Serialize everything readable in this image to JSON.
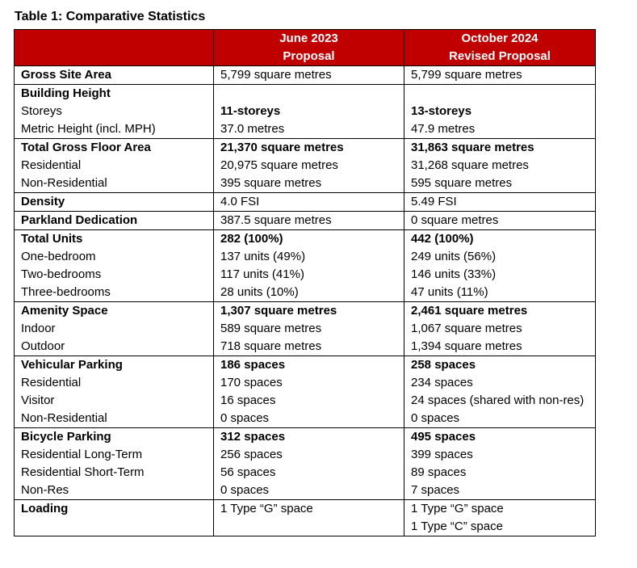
{
  "caption": "Table 1: Comparative Statistics",
  "headers": {
    "col1": [
      "June 2023",
      "Proposal"
    ],
    "col2": [
      "October 2024",
      "Revised Proposal"
    ]
  },
  "rows": [
    {
      "label": "Gross Site Area",
      "v1": "5,799 square metres",
      "v2": "5,799 square metres"
    },
    {
      "label": "Building Height",
      "v1": "",
      "v2": ""
    },
    {
      "label": "Storeys",
      "v1": "11-storeys",
      "v2": "13-storeys"
    },
    {
      "label": "Metric Height (incl. MPH)",
      "v1": "37.0 metres",
      "v2": "47.9 metres"
    },
    {
      "label": "Total Gross Floor Area",
      "v1": "21,370 square metres",
      "v2": "31,863 square metres"
    },
    {
      "label": "Residential",
      "v1": "20,975 square metres",
      "v2": "31,268 square metres"
    },
    {
      "label": "Non-Residential",
      "v1": "395 square metres",
      "v2": "595 square metres"
    },
    {
      "label": "Density",
      "v1": "4.0 FSI",
      "v2": "5.49 FSI"
    },
    {
      "label": "Parkland Dedication",
      "v1": "387.5 square metres",
      "v2": "0 square metres"
    },
    {
      "label": "Total Units",
      "v1": "282 (100%)",
      "v2": "442 (100%)"
    },
    {
      "label": "One-bedroom",
      "v1": "137 units (49%)",
      "v2": "249 units (56%)"
    },
    {
      "label": "Two-bedrooms",
      "v1": "117 units (41%)",
      "v2": "146 units (33%)"
    },
    {
      "label": "Three-bedrooms",
      "v1": "28 units (10%)",
      "v2": "47 units (11%)"
    },
    {
      "label": "Amenity Space",
      "v1": "1,307 square metres",
      "v2": "2,461 square metres"
    },
    {
      "label": "Indoor",
      "v1": "589 square metres",
      "v2": "1,067 square metres"
    },
    {
      "label": "Outdoor",
      "v1": "718 square metres",
      "v2": "1,394 square metres"
    },
    {
      "label": "Vehicular Parking",
      "v1": "186 spaces",
      "v2": "258 spaces"
    },
    {
      "label": "Residential",
      "v1": "170 spaces",
      "v2": "234 spaces"
    },
    {
      "label": "Visitor",
      "v1": "16 spaces",
      "v2": "24 spaces (shared with non-res)"
    },
    {
      "label": "Non-Residential",
      "v1": "0 spaces",
      "v2": "0 spaces"
    },
    {
      "label": "Bicycle Parking",
      "v1": "312 spaces",
      "v2": "495 spaces"
    },
    {
      "label": "Residential Long-Term",
      "v1": "256 spaces",
      "v2": "399 spaces"
    },
    {
      "label": "Residential Short-Term",
      "v1": "56 spaces",
      "v2": "89 spaces"
    },
    {
      "label": "Non-Res",
      "v1": "0 spaces",
      "v2": "7 spaces"
    },
    {
      "label": "Loading",
      "v1": "1 Type “G” space",
      "v2": "1 Type “G” space"
    },
    {
      "label": "",
      "v1": "",
      "v2": "1 Type “C” space"
    }
  ]
}
